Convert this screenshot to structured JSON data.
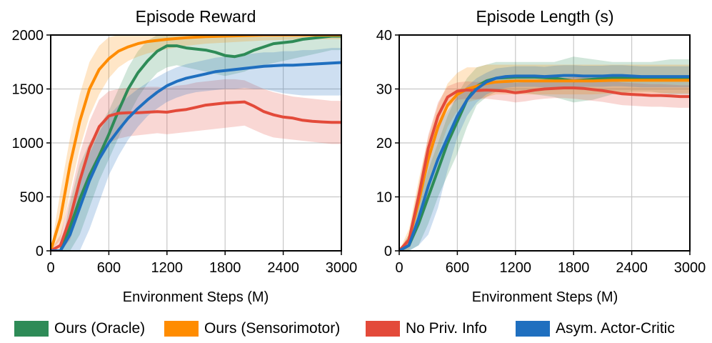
{
  "chart_data": [
    {
      "type": "line",
      "title": "Episode Reward",
      "xlabel": "Environment Steps (M)",
      "ylabel": "",
      "xlim": [
        0,
        3000
      ],
      "ylim": [
        0,
        2000
      ],
      "xticks": [
        0,
        600,
        1200,
        1800,
        2400,
        3000
      ],
      "yticks": [
        0,
        500,
        1000,
        1500,
        2000
      ],
      "grid": true,
      "series": [
        {
          "name": "Ours (Oracle)",
          "color": "#2e8b57",
          "x": [
            0,
            100,
            200,
            300,
            400,
            500,
            600,
            700,
            800,
            900,
            1000,
            1100,
            1200,
            1300,
            1400,
            1500,
            1600,
            1700,
            1800,
            1900,
            2000,
            2100,
            2200,
            2300,
            2400,
            2500,
            2600,
            2700,
            2800,
            2900,
            3000
          ],
          "y": [
            0,
            0,
            220,
            480,
            700,
            880,
            1080,
            1300,
            1500,
            1650,
            1760,
            1850,
            1900,
            1900,
            1880,
            1870,
            1860,
            1840,
            1810,
            1800,
            1820,
            1860,
            1890,
            1920,
            1930,
            1940,
            1960,
            1970,
            1980,
            1990,
            1990
          ],
          "lower": [
            0,
            0,
            0,
            150,
            400,
            650,
            850,
            1050,
            1250,
            1420,
            1550,
            1650,
            1700,
            1720,
            1700,
            1680,
            1660,
            1640,
            1620,
            1640,
            1660,
            1700,
            1720,
            1740,
            1760,
            1780,
            1800,
            1820,
            1840,
            1860,
            1860
          ],
          "upper": [
            0,
            0,
            450,
            800,
            1000,
            1150,
            1300,
            1500,
            1700,
            1850,
            1950,
            2000,
            2000,
            2000,
            2000,
            2000,
            2000,
            2000,
            2000,
            2000,
            2000,
            2000,
            2000,
            2000,
            2000,
            2000,
            2000,
            2000,
            2000,
            2000,
            2000
          ]
        },
        {
          "name": "Ours (Sensorimotor)",
          "color": "#ff8c00",
          "x": [
            0,
            100,
            200,
            300,
            400,
            500,
            600,
            700,
            800,
            900,
            1000,
            1200,
            1400,
            1600,
            1800,
            2000,
            2200,
            2400,
            2600,
            2800,
            3000
          ],
          "y": [
            0,
            300,
            800,
            1200,
            1500,
            1680,
            1780,
            1850,
            1890,
            1920,
            1940,
            1960,
            1975,
            1985,
            1990,
            1995,
            2000,
            2000,
            2000,
            2000,
            2000
          ],
          "lower": [
            0,
            100,
            550,
            950,
            1250,
            1450,
            1600,
            1700,
            1760,
            1800,
            1830,
            1870,
            1900,
            1920,
            1930,
            1940,
            1950,
            1955,
            1960,
            1960,
            1960
          ],
          "upper": [
            0,
            550,
            1050,
            1450,
            1750,
            1900,
            1980,
            2000,
            2000,
            2000,
            2000,
            2000,
            2000,
            2000,
            2000,
            2000,
            2000,
            2000,
            2000,
            2000,
            2000
          ]
        },
        {
          "name": "No Priv. Info",
          "color": "#e34a3a",
          "x": [
            0,
            100,
            200,
            300,
            400,
            500,
            600,
            700,
            800,
            900,
            1000,
            1100,
            1200,
            1300,
            1400,
            1500,
            1600,
            1700,
            1800,
            1900,
            2000,
            2100,
            2200,
            2300,
            2400,
            2500,
            2600,
            2700,
            2800,
            2900,
            3000
          ],
          "y": [
            0,
            50,
            300,
            650,
            950,
            1150,
            1250,
            1275,
            1280,
            1280,
            1285,
            1290,
            1285,
            1300,
            1310,
            1330,
            1350,
            1360,
            1370,
            1375,
            1380,
            1340,
            1290,
            1260,
            1240,
            1230,
            1210,
            1200,
            1195,
            1190,
            1190
          ],
          "lower": [
            0,
            0,
            100,
            400,
            700,
            900,
            1000,
            1040,
            1060,
            1070,
            1080,
            1090,
            1080,
            1090,
            1100,
            1110,
            1120,
            1130,
            1140,
            1150,
            1160,
            1120,
            1080,
            1050,
            1040,
            1030,
            1020,
            1010,
            1000,
            990,
            990
          ],
          "upper": [
            0,
            150,
            500,
            900,
            1200,
            1400,
            1480,
            1500,
            1510,
            1510,
            1520,
            1520,
            1510,
            1530,
            1540,
            1560,
            1570,
            1580,
            1590,
            1590,
            1580,
            1540,
            1500,
            1470,
            1450,
            1430,
            1420,
            1410,
            1400,
            1390,
            1390
          ]
        },
        {
          "name": "Asym. Actor-Critic",
          "color": "#1f6fbf",
          "x": [
            0,
            100,
            200,
            300,
            400,
            500,
            600,
            700,
            800,
            900,
            1000,
            1100,
            1200,
            1300,
            1400,
            1500,
            1600,
            1700,
            1800,
            1900,
            2000,
            2100,
            2200,
            2300,
            2400,
            2500,
            2600,
            2700,
            2800,
            2900,
            3000
          ],
          "y": [
            0,
            0,
            150,
            400,
            650,
            850,
            1000,
            1120,
            1230,
            1320,
            1400,
            1470,
            1530,
            1570,
            1600,
            1620,
            1640,
            1660,
            1670,
            1680,
            1690,
            1700,
            1710,
            1715,
            1720,
            1720,
            1725,
            1730,
            1735,
            1740,
            1745
          ],
          "lower": [
            0,
            0,
            0,
            0,
            200,
            450,
            700,
            880,
            1030,
            1150,
            1250,
            1320,
            1380,
            1420,
            1450,
            1470,
            1480,
            1490,
            1500,
            1500,
            1510,
            1500,
            1500,
            1480,
            1460,
            1450,
            1440,
            1440,
            1440,
            1440,
            1440
          ],
          "upper": [
            0,
            0,
            300,
            650,
            900,
            1100,
            1250,
            1350,
            1430,
            1500,
            1560,
            1610,
            1660,
            1700,
            1730,
            1750,
            1770,
            1790,
            1800,
            1810,
            1820,
            1830,
            1840,
            1840,
            1850,
            1850,
            1860,
            1860,
            1870,
            1880,
            1880
          ]
        }
      ]
    },
    {
      "type": "line",
      "title": "Episode Length (s)",
      "xlabel": "Environment Steps (M)",
      "ylabel": "",
      "xlim": [
        0,
        3000
      ],
      "ylim": [
        0,
        40
      ],
      "xticks": [
        0,
        600,
        1200,
        1800,
        2400,
        3000
      ],
      "yticks": [
        0,
        10,
        20,
        30,
        40
      ],
      "grid": true,
      "series": [
        {
          "name": "Ours (Oracle)",
          "color": "#2e8b57",
          "x": [
            0,
            100,
            200,
            300,
            400,
            500,
            600,
            700,
            800,
            900,
            1000,
            1200,
            1400,
            1600,
            1800,
            2000,
            2200,
            2400,
            2600,
            2800,
            3000
          ],
          "y": [
            0,
            1,
            5,
            10,
            15,
            20,
            24,
            28,
            30.5,
            31.5,
            32,
            32.2,
            32.2,
            32,
            31.5,
            31.8,
            32,
            32,
            32,
            31.8,
            31.8
          ],
          "lower": [
            0,
            0,
            1,
            5,
            10,
            14,
            18,
            23,
            27,
            28.5,
            29.5,
            29.5,
            29,
            28.5,
            27.5,
            28,
            29,
            29.5,
            29.5,
            29,
            29
          ],
          "upper": [
            0,
            3,
            9,
            15,
            20,
            25,
            29,
            32,
            34,
            34.5,
            35,
            35,
            35,
            35,
            36,
            35.5,
            35,
            35,
            35,
            35.5,
            35.5
          ]
        },
        {
          "name": "Ours (Sensorimotor)",
          "color": "#ff8c00",
          "x": [
            0,
            100,
            200,
            300,
            400,
            500,
            600,
            700,
            800,
            900,
            1000,
            1200,
            1400,
            1600,
            1800,
            2000,
            2200,
            2400,
            2600,
            2800,
            3000
          ],
          "y": [
            0,
            2,
            9,
            17,
            23,
            27,
            29,
            30,
            30.5,
            31,
            31.3,
            31.5,
            31.5,
            31.5,
            31.5,
            31.5,
            31.6,
            31.6,
            31.6,
            31.6,
            31.6
          ],
          "lower": [
            0,
            0,
            5,
            12,
            18,
            23,
            26,
            27.5,
            28,
            28.5,
            29,
            29,
            29,
            29,
            29,
            29,
            29.2,
            29.2,
            29.2,
            29.2,
            29.2
          ],
          "upper": [
            0,
            4,
            13,
            21,
            27,
            31,
            33,
            34,
            34,
            34.5,
            34.5,
            34.5,
            34.5,
            34.5,
            34.5,
            34.5,
            34.5,
            34.5,
            34.5,
            34.5,
            34.5
          ]
        },
        {
          "name": "No Priv. Info",
          "color": "#e34a3a",
          "x": [
            0,
            100,
            200,
            300,
            400,
            500,
            600,
            700,
            800,
            900,
            1000,
            1100,
            1200,
            1300,
            1400,
            1500,
            1600,
            1700,
            1800,
            1900,
            2000,
            2100,
            2200,
            2300,
            2400,
            2500,
            2600,
            2700,
            2800,
            2900,
            3000
          ],
          "y": [
            0,
            2,
            10,
            19,
            25,
            28.5,
            29.6,
            29.8,
            29.7,
            29.8,
            29.7,
            29.6,
            29.3,
            29.5,
            29.8,
            30,
            30.1,
            30.2,
            30.2,
            30.1,
            29.9,
            29.7,
            29.4,
            29.1,
            29,
            28.9,
            28.8,
            28.8,
            28.7,
            28.6,
            28.6
          ],
          "lower": [
            0,
            1,
            8,
            16,
            22,
            26.5,
            28,
            28.2,
            28.1,
            28.2,
            28,
            27.8,
            27.5,
            27.7,
            28,
            28.2,
            28.3,
            28.3,
            28.2,
            28,
            27.8,
            27.6,
            27.3,
            27,
            26.9,
            26.8,
            26.7,
            26.7,
            26.6,
            26.5,
            26.5
          ],
          "upper": [
            0,
            3,
            12,
            21.5,
            27.5,
            30.5,
            31.2,
            31.4,
            31.3,
            31.4,
            31.4,
            31.4,
            31.1,
            31.3,
            31.6,
            31.8,
            31.9,
            32,
            32.2,
            32.2,
            32,
            31.8,
            31.5,
            31.2,
            31.1,
            31,
            30.9,
            30.9,
            30.8,
            30.7,
            30.7
          ]
        },
        {
          "name": "Asym. Actor-Critic",
          "color": "#1f6fbf",
          "x": [
            0,
            100,
            200,
            300,
            400,
            500,
            600,
            700,
            800,
            900,
            1000,
            1100,
            1200,
            1300,
            1400,
            1500,
            1600,
            1700,
            1800,
            1900,
            2000,
            2100,
            2200,
            2300,
            2400,
            2500,
            2600,
            2700,
            2800,
            2900,
            3000
          ],
          "y": [
            0,
            1,
            6,
            12,
            17,
            21,
            25,
            28,
            30,
            31.3,
            32,
            32.3,
            32.4,
            32.4,
            32.4,
            32.3,
            32.4,
            32.5,
            32.5,
            32.4,
            32.4,
            32.4,
            32.5,
            32.5,
            32.4,
            32.3,
            32.3,
            32.3,
            32.3,
            32.3,
            32.3
          ],
          "lower": [
            0,
            0,
            1,
            3,
            8,
            15,
            21,
            25,
            27.5,
            29,
            29.8,
            30.2,
            30.4,
            30.4,
            30.4,
            30.3,
            30.3,
            30.4,
            30.4,
            30.4,
            30.4,
            30.4,
            30.5,
            30.5,
            30.4,
            30.3,
            30.3,
            30.3,
            30.3,
            30.3,
            30.3
          ],
          "upper": [
            0,
            2,
            10,
            17,
            23,
            26,
            28.5,
            30.5,
            32,
            33,
            33.8,
            34,
            34.2,
            34.2,
            34.2,
            34.1,
            34.3,
            34.4,
            34.4,
            34.3,
            34.3,
            34.3,
            34.4,
            34.4,
            34.3,
            34.2,
            34.2,
            34.2,
            34.2,
            34.2,
            34.2
          ]
        }
      ]
    }
  ],
  "legend": {
    "items": [
      {
        "label": "Ours (Oracle)",
        "color": "#2e8b57"
      },
      {
        "label": "Ours (Sensorimotor)",
        "color": "#ff8c00"
      },
      {
        "label": "No Priv. Info",
        "color": "#e34a3a"
      },
      {
        "label": "Asym. Actor-Critic",
        "color": "#1f6fbf"
      }
    ]
  }
}
